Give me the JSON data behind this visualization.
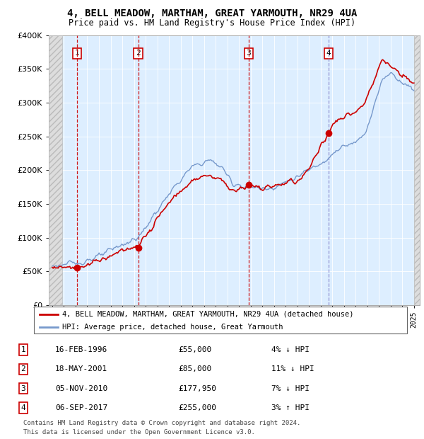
{
  "title": "4, BELL MEADOW, MARTHAM, GREAT YARMOUTH, NR29 4UA",
  "subtitle": "Price paid vs. HM Land Registry's House Price Index (HPI)",
  "sale_dates_float": [
    1996.12,
    2001.37,
    2010.84,
    2017.67
  ],
  "sale_prices": [
    55000,
    85000,
    177950,
    255000
  ],
  "sale_labels": [
    "1",
    "2",
    "3",
    "4"
  ],
  "sale_vline_colors": [
    "#cc0000",
    "#cc0000",
    "#cc0000",
    "#8888cc"
  ],
  "legend_property": "4, BELL MEADOW, MARTHAM, GREAT YARMOUTH, NR29 4UA (detached house)",
  "legend_hpi": "HPI: Average price, detached house, Great Yarmouth",
  "table_rows": [
    [
      "1",
      "16-FEB-1996",
      "£55,000",
      "4% ↓ HPI"
    ],
    [
      "2",
      "18-MAY-2001",
      "£85,000",
      "11% ↓ HPI"
    ],
    [
      "3",
      "05-NOV-2010",
      "£177,950",
      "7% ↓ HPI"
    ],
    [
      "4",
      "06-SEP-2017",
      "£255,000",
      "3% ↑ HPI"
    ]
  ],
  "footnote1": "Contains HM Land Registry data © Crown copyright and database right 2024.",
  "footnote2": "This data is licensed under the Open Government Licence v3.0.",
  "plot_bg_color": "#ddeeff",
  "hatch_bg_color": "#dddddd",
  "line_color_property": "#cc0000",
  "line_color_hpi": "#7799cc",
  "ylim": [
    0,
    400000
  ],
  "yticks": [
    0,
    50000,
    100000,
    150000,
    200000,
    250000,
    300000,
    350000,
    400000
  ],
  "xlim_start": 1993.7,
  "xlim_end": 2025.5,
  "hatch_left_end": 1994.83,
  "hatch_right_start": 2025.0
}
